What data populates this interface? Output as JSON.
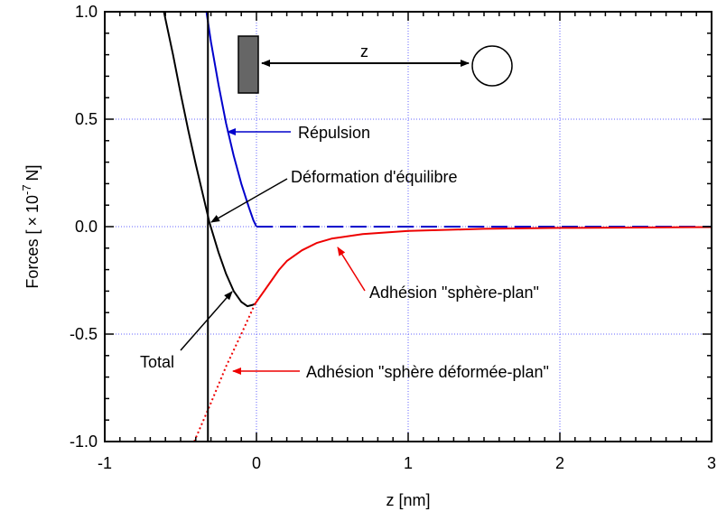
{
  "chart_data": {
    "type": "line",
    "title": "",
    "xlabel": "z [nm]",
    "ylabel": {
      "prefix": "Forces [",
      "times": "×",
      "base": "10",
      "exponent": "-7",
      "suffix": "N]"
    },
    "xlim": [
      -1,
      3
    ],
    "ylim": [
      -1.0,
      1.0
    ],
    "x_ticks": [
      {
        "value": -1,
        "label": "-1"
      },
      {
        "value": 0,
        "label": "0"
      },
      {
        "value": 1,
        "label": "1"
      },
      {
        "value": 2,
        "label": "2"
      },
      {
        "value": 3,
        "label": "3"
      }
    ],
    "y_ticks": [
      {
        "value": 1.0,
        "label": "1.0"
      },
      {
        "value": 0.5,
        "label": "0.5"
      },
      {
        "value": 0.0,
        "label": "0.0"
      },
      {
        "value": -0.5,
        "label": "-0.5"
      },
      {
        "value": -1.0,
        "label": "-1.0"
      }
    ],
    "grid": true,
    "series": [
      {
        "key": "repulsion",
        "color": "#0000cc",
        "dash": "solid",
        "points": [
          [
            -0.33,
            1.0
          ],
          [
            -0.3,
            0.86
          ],
          [
            -0.25,
            0.66
          ],
          [
            -0.2,
            0.48
          ],
          [
            -0.15,
            0.33
          ],
          [
            -0.1,
            0.2
          ],
          [
            -0.05,
            0.09
          ],
          [
            -0.02,
            0.03
          ],
          [
            0.0,
            0.0
          ]
        ]
      },
      {
        "key": "repulsion-zero",
        "color": "#0000cc",
        "dash": "dashed",
        "points": [
          [
            0.0,
            0.0
          ],
          [
            3.0,
            0.0
          ]
        ]
      },
      {
        "key": "total",
        "color": "#000000",
        "dash": "solid",
        "points": [
          [
            -0.61,
            1.0
          ],
          [
            -0.55,
            0.8
          ],
          [
            -0.5,
            0.62
          ],
          [
            -0.45,
            0.45
          ],
          [
            -0.4,
            0.29
          ],
          [
            -0.35,
            0.14
          ],
          [
            -0.31,
            0.02
          ],
          [
            -0.25,
            -0.12
          ],
          [
            -0.2,
            -0.22
          ],
          [
            -0.15,
            -0.3
          ],
          [
            -0.1,
            -0.35
          ],
          [
            -0.06,
            -0.37
          ],
          [
            -0.03,
            -0.365
          ],
          [
            -0.01,
            -0.36
          ]
        ]
      },
      {
        "key": "adhesion-sphere-plan",
        "color": "#ee0000",
        "dash": "solid",
        "points": [
          [
            -0.01,
            -0.36
          ],
          [
            0.05,
            -0.3
          ],
          [
            0.1,
            -0.25
          ],
          [
            0.15,
            -0.2
          ],
          [
            0.2,
            -0.16
          ],
          [
            0.3,
            -0.11
          ],
          [
            0.4,
            -0.075
          ],
          [
            0.5,
            -0.055
          ],
          [
            0.7,
            -0.035
          ],
          [
            1.0,
            -0.02
          ],
          [
            1.5,
            -0.01
          ],
          [
            2.0,
            -0.006
          ],
          [
            2.5,
            -0.004
          ],
          [
            3.0,
            -0.002
          ]
        ]
      },
      {
        "key": "adhesion-sphere-deformee-plan",
        "color": "#ee0000",
        "dash": "dotted",
        "points": [
          [
            -0.41,
            -1.0
          ],
          [
            -0.3,
            -0.82
          ],
          [
            -0.2,
            -0.65
          ],
          [
            -0.1,
            -0.5
          ],
          [
            -0.01,
            -0.36
          ]
        ]
      }
    ],
    "equilibrium_line_x": -0.32,
    "annotations": {
      "repulsion": "Répulsion",
      "equilibre": "Déformation d'équilibre",
      "adhesion_plan": "Adhésion \"sphère-plan\"",
      "adhesion_deformee": "Adhésion \"sphère déformée-plan\"",
      "total": "Total",
      "distance": "z"
    }
  }
}
